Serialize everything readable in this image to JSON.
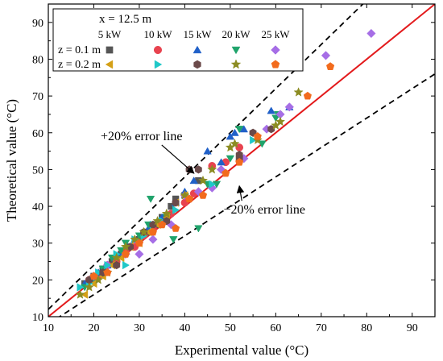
{
  "chart_data": {
    "type": "scatter",
    "xlabel": "Experimental value (°C)",
    "ylabel": "Theoretical value (°C)",
    "xlim": [
      10,
      95
    ],
    "ylim": [
      10,
      95
    ],
    "xticks": [
      10,
      20,
      30,
      40,
      50,
      60,
      70,
      80,
      90
    ],
    "yticks": [
      10,
      20,
      30,
      40,
      50,
      60,
      70,
      80,
      90
    ],
    "grid": false,
    "legend_placement": "top-left",
    "legend": {
      "header": "x = 12.5 m",
      "columns": [
        "5 kW",
        "10 kW",
        "15 kW",
        "20 kW",
        "25 kW"
      ],
      "rows": [
        "z = 0.1 m",
        "z = 0.2 m"
      ]
    },
    "lines": [
      {
        "role": "ideal",
        "slope": 1.0,
        "color": "#e31a1c",
        "style": "solid"
      },
      {
        "role": "plus20",
        "slope": 1.2,
        "color": "#000000",
        "style": "dashed"
      },
      {
        "role": "minus20",
        "slope": 0.8,
        "color": "#000000",
        "style": "dashed"
      }
    ],
    "annotations": [
      {
        "text": "+20% error line",
        "x": 30.5,
        "y": 58,
        "arrow_to": [
          42,
          49
        ]
      },
      {
        "text": "−20% error line",
        "x": 57.5,
        "y": 38,
        "arrow_to": [
          52,
          45.5
        ]
      }
    ],
    "series": [
      {
        "name": "z = 0.1 m, 5 kW",
        "marker": "square",
        "color": "#555555",
        "points": [
          [
            18,
            19
          ],
          [
            20,
            21
          ],
          [
            22,
            23
          ],
          [
            24,
            25
          ],
          [
            26,
            27
          ],
          [
            28,
            29
          ],
          [
            30,
            31
          ],
          [
            32,
            33
          ],
          [
            34,
            35
          ],
          [
            35,
            37
          ],
          [
            37,
            40
          ],
          [
            38,
            42
          ],
          [
            40,
            43
          ],
          [
            43,
            47
          ]
        ]
      },
      {
        "name": "z = 0.1 m, 10 kW",
        "marker": "circle",
        "color": "#e8434f",
        "points": [
          [
            19,
            20
          ],
          [
            21,
            21
          ],
          [
            23,
            24
          ],
          [
            25,
            25
          ],
          [
            27,
            28
          ],
          [
            29,
            29
          ],
          [
            31,
            32
          ],
          [
            33,
            34
          ],
          [
            35,
            36
          ],
          [
            37,
            38
          ],
          [
            40,
            41
          ],
          [
            42,
            43.5
          ],
          [
            46,
            51
          ],
          [
            49,
            52
          ],
          [
            52,
            56
          ]
        ]
      },
      {
        "name": "z = 0.1 m, 15 kW",
        "marker": "triangle-up",
        "color": "#2060c8",
        "points": [
          [
            18,
            19
          ],
          [
            21,
            22
          ],
          [
            23,
            24
          ],
          [
            26,
            27
          ],
          [
            29,
            31
          ],
          [
            32,
            34
          ],
          [
            35,
            37
          ],
          [
            38,
            41
          ],
          [
            40,
            44
          ],
          [
            42,
            47
          ],
          [
            45,
            55
          ],
          [
            48,
            52
          ],
          [
            50,
            59
          ],
          [
            51,
            60
          ],
          [
            53,
            61
          ],
          [
            59,
            66
          ],
          [
            63,
            67
          ]
        ]
      },
      {
        "name": "z = 0.1 m, 20 kW",
        "marker": "triangle-down",
        "color": "#1fa36b",
        "points": [
          [
            18,
            18
          ],
          [
            20,
            20
          ],
          [
            22,
            23
          ],
          [
            24,
            26
          ],
          [
            26,
            28
          ],
          [
            27,
            30
          ],
          [
            30,
            32
          ],
          [
            32,
            35
          ],
          [
            32.5,
            42
          ],
          [
            36,
            37
          ],
          [
            37.5,
            31
          ],
          [
            43,
            34
          ],
          [
            45,
            46
          ],
          [
            47,
            46
          ],
          [
            50,
            53
          ],
          [
            52,
            61
          ],
          [
            57,
            57
          ],
          [
            60,
            64
          ],
          [
            60.5,
            65
          ]
        ]
      },
      {
        "name": "z = 0.1 m, 25 kW",
        "marker": "diamond",
        "color": "#a66ee6",
        "points": [
          [
            20,
            21
          ],
          [
            23,
            24
          ],
          [
            27,
            27
          ],
          [
            30,
            27
          ],
          [
            33,
            31
          ],
          [
            37,
            35
          ],
          [
            40,
            43
          ],
          [
            43,
            44
          ],
          [
            46,
            45
          ],
          [
            48,
            50
          ],
          [
            53,
            53
          ],
          [
            58,
            61
          ],
          [
            61,
            65
          ],
          [
            63,
            67
          ],
          [
            71,
            81
          ],
          [
            81,
            87
          ]
        ]
      },
      {
        "name": "z = 0.2 m, 5 kW",
        "marker": "triangle-left",
        "color": "#d4a017",
        "points": [
          [
            18,
            16
          ],
          [
            20,
            19
          ],
          [
            22,
            21
          ],
          [
            24,
            24
          ],
          [
            26,
            26
          ],
          [
            28,
            29
          ],
          [
            30,
            30
          ],
          [
            32,
            33
          ],
          [
            34,
            35
          ],
          [
            36,
            37
          ],
          [
            38,
            41
          ],
          [
            40,
            43
          ]
        ]
      },
      {
        "name": "z = 0.2 m, 10 kW",
        "marker": "triangle-right",
        "color": "#1fc8c8",
        "points": [
          [
            17,
            18
          ],
          [
            19,
            19
          ],
          [
            21,
            22
          ],
          [
            23,
            24
          ],
          [
            25,
            27
          ],
          [
            27,
            24
          ],
          [
            29,
            31
          ],
          [
            31,
            32
          ],
          [
            33,
            35
          ],
          [
            35,
            36
          ],
          [
            38,
            39
          ],
          [
            46,
            46
          ],
          [
            55,
            58
          ]
        ]
      },
      {
        "name": "z = 0.2 m, 15 kW",
        "marker": "hexagon",
        "color": "#6b4a4a",
        "points": [
          [
            19,
            20
          ],
          [
            22,
            22
          ],
          [
            25,
            24
          ],
          [
            28,
            29
          ],
          [
            31,
            33
          ],
          [
            33,
            35
          ],
          [
            36,
            36
          ],
          [
            38,
            41
          ],
          [
            41,
            50
          ],
          [
            43,
            50
          ],
          [
            52,
            53
          ],
          [
            52,
            54
          ],
          [
            55,
            60
          ],
          [
            59,
            61
          ]
        ]
      },
      {
        "name": "z = 0.2 m, 20 kW",
        "marker": "star",
        "color": "#8c8c22",
        "points": [
          [
            17,
            16
          ],
          [
            19,
            18
          ],
          [
            21,
            20
          ],
          [
            23,
            22
          ],
          [
            25,
            26
          ],
          [
            27,
            29
          ],
          [
            29,
            31
          ],
          [
            31,
            33
          ],
          [
            34,
            36
          ],
          [
            36,
            38
          ],
          [
            40,
            43
          ],
          [
            44,
            47
          ],
          [
            46,
            50
          ],
          [
            50,
            56
          ],
          [
            51,
            57
          ],
          [
            56,
            58
          ],
          [
            60,
            62
          ],
          [
            61,
            63
          ],
          [
            65,
            71
          ]
        ]
      },
      {
        "name": "z = 0.2 m, 25 kW",
        "marker": "pentagon",
        "color": "#f26b1d",
        "points": [
          [
            20,
            21
          ],
          [
            23,
            22
          ],
          [
            27,
            27
          ],
          [
            30,
            30
          ],
          [
            33,
            33
          ],
          [
            35,
            35
          ],
          [
            38,
            34
          ],
          [
            41,
            42
          ],
          [
            44,
            43
          ],
          [
            49,
            49
          ],
          [
            52,
            52
          ],
          [
            56,
            59
          ],
          [
            67,
            70
          ],
          [
            72,
            78
          ]
        ]
      }
    ]
  }
}
